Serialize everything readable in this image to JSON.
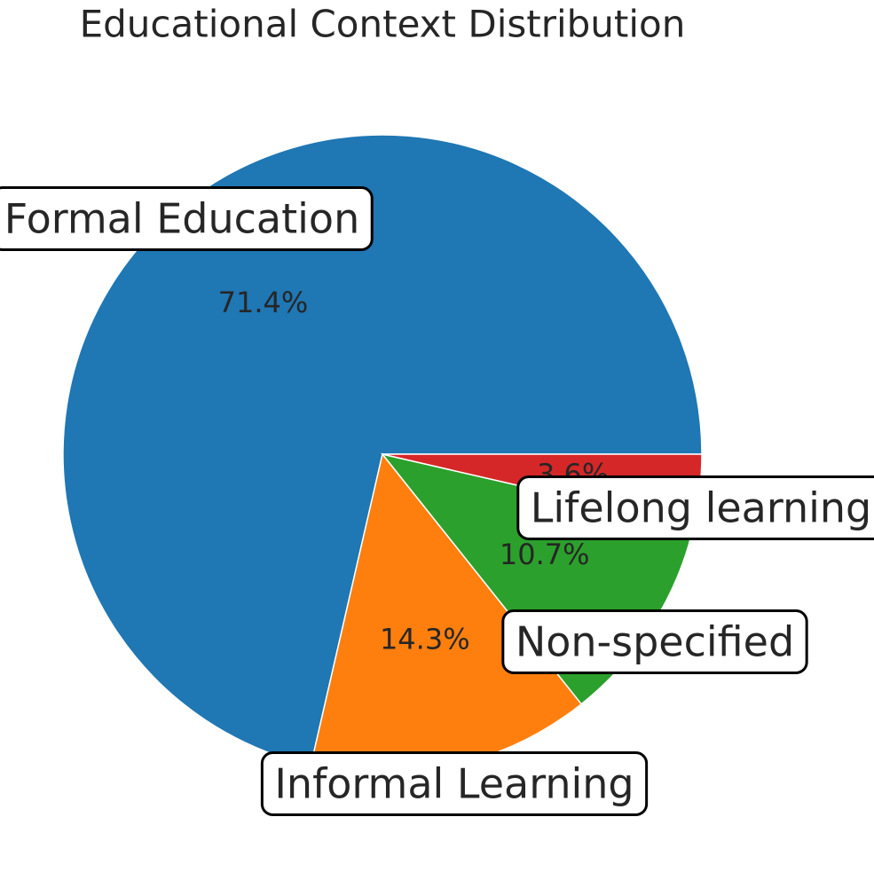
{
  "chart_data": {
    "type": "pie",
    "title": "Educational Context Distribution",
    "categories": [
      "Formal Education",
      "Informal Learning",
      "Non-specified",
      "Lifelong learning"
    ],
    "values": [
      71.4,
      14.3,
      10.7,
      3.6
    ],
    "value_labels": [
      "71.4%",
      "14.3%",
      "10.7%",
      "3.6%"
    ],
    "colors": [
      "#1f77b4",
      "#ff7f0e",
      "#2ca02c",
      "#d62728"
    ]
  }
}
